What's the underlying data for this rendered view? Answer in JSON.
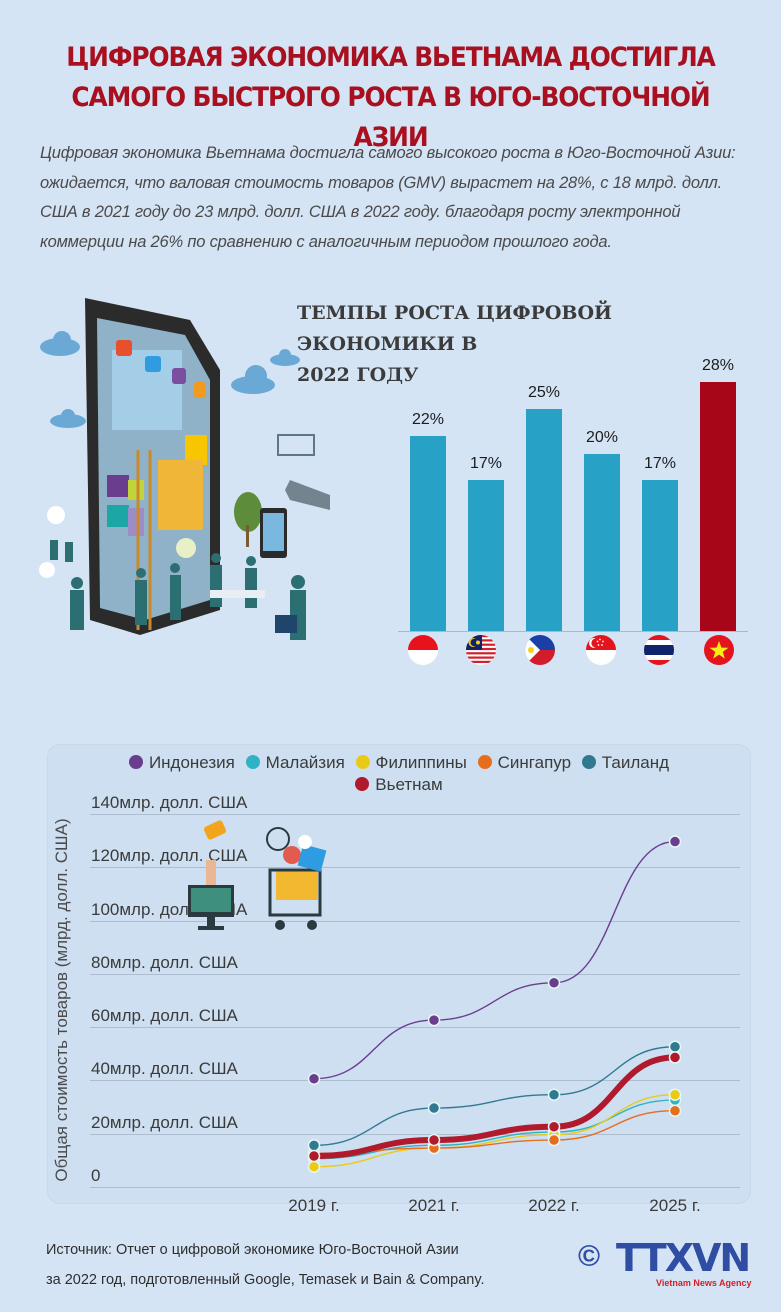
{
  "header": {
    "title_line1": "ЦИФРОВАЯ ЭКОНОМИКА ВЬЕТНАМА ДОСТИГЛА",
    "title_line2": "САМОГО  БЫСТРОГО РОСТА В ЮГО-ВОСТОЧНОЙ АЗИИ",
    "title_color": "#a8101f"
  },
  "lead": {
    "line1": "Цифровая экономика Вьетнама достигла самого высокого роста в Юго-Восточной Азии:",
    "line2": "ожидается, что валовая стоимость товаров (GMV) вырастет на 28%, с 18 млрд. долл.",
    "line3": "США в 2021 году до 23 млрд. долл. США в 2022 году. благодаря росту электронной",
    "line4": "коммерции на 26% по сравнению с аналогичным периодом прошлого года."
  },
  "illustration": {
    "icon": "tablet-people-illustration-icon"
  },
  "bar_section": {
    "title_line1": "ТЕМПЫ РОСТА ЦИФРОВОЙ ЭКОНОМИКИ В",
    "title_line2": "2022 ГОДУ"
  },
  "footer": {
    "source_line1": "Источник: Отчет о цифровой экономике Юго-Восточной Азии",
    "source_line2": "за 2022 год, подготовленный Google, Temasek и Bain & Company.",
    "copyright": "©",
    "logo_text": "TTXVN",
    "logo_sub": "Vietnam News Agency"
  },
  "chart_data": [
    {
      "type": "bar",
      "title": "ТЕМПЫ РОСТА ЦИФРОВОЙ ЭКОНОМИКИ В 2022 ГОДУ",
      "categories": [
        "Индонезия",
        "Малайзия",
        "Филиппины",
        "Сингапур",
        "Таиланд",
        "Вьетнам"
      ],
      "category_icons": [
        "flag-indonesia-icon",
        "flag-malaysia-icon",
        "flag-philippines-icon",
        "flag-singapore-icon",
        "flag-thailand-icon",
        "flag-vietnam-icon"
      ],
      "values": [
        22,
        17,
        25,
        20,
        17,
        28
      ],
      "labels": [
        "22%",
        "17%",
        "25%",
        "20%",
        "17%",
        "28%"
      ],
      "colors": [
        "#27a2c6",
        "#27a2c6",
        "#27a2c6",
        "#27a2c6",
        "#27a2c6",
        "#a70518"
      ],
      "xlabel": "",
      "ylabel": "",
      "ylim": [
        0,
        30
      ],
      "grid": false
    },
    {
      "type": "line",
      "title": "",
      "x": [
        "2019 г.",
        "2021 г.",
        "2022 г.",
        "2025 г."
      ],
      "ylabel": "Общая стоимость товаров (млрд. долл. США)",
      "xlabel": "",
      "ylim": [
        0,
        140
      ],
      "yticks": [
        "0",
        "20млр. долл. США",
        "40млр. долл. США",
        "60млр. долл. США",
        "80млр. долл. США",
        "100млр. долл. США",
        "120млр. долл. США",
        "140млр. долл. США"
      ],
      "grid": true,
      "legend_position": "top",
      "series": [
        {
          "name": "Индонезия",
          "color": "#6a3d8f",
          "values": [
            41,
            63,
            77,
            130
          ]
        },
        {
          "name": "Малайзия",
          "color": "#2fb3c4",
          "values": [
            11,
            16,
            21,
            33
          ]
        },
        {
          "name": "Филиппины",
          "color": "#e9cb17",
          "values": [
            8,
            15,
            20,
            35
          ]
        },
        {
          "name": "Сингапур",
          "color": "#e56e1c",
          "values": [
            13,
            15,
            18,
            29
          ]
        },
        {
          "name": "Таиланд",
          "color": "#2f7a91",
          "values": [
            16,
            30,
            35,
            53
          ]
        },
        {
          "name": "Вьетнам",
          "color": "#b01a2c",
          "values": [
            12,
            18,
            23,
            49
          ]
        }
      ]
    }
  ]
}
